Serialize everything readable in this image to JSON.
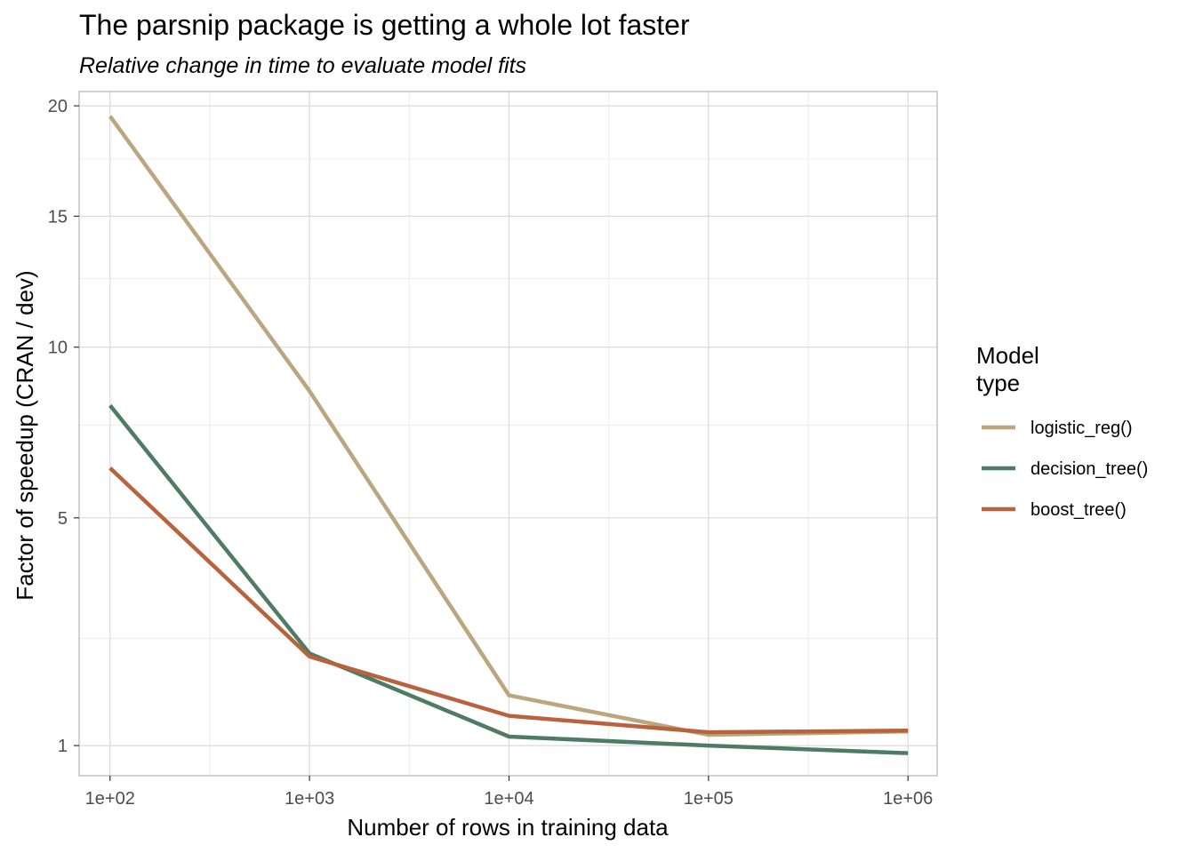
{
  "chart_data": {
    "type": "line",
    "title": "The parsnip package is getting a whole lot faster",
    "subtitle": "Relative change in time to evaluate model fits",
    "xlabel": "Number of rows in training data",
    "ylabel": "Factor of speedup (CRAN / dev)",
    "x_scale": "log10",
    "y_scale": "sqrt",
    "x": [
      100,
      1000,
      10000,
      100000,
      1000000
    ],
    "x_tick_values": [
      100,
      1000,
      10000,
      100000,
      1000000
    ],
    "x_tick_labels": [
      "1e+02",
      "1e+03",
      "1e+04",
      "1e+05",
      "1e+06"
    ],
    "y_tick_values": [
      1,
      5,
      10,
      15,
      20
    ],
    "y_tick_labels": [
      "1",
      "5",
      "10",
      "15",
      "20"
    ],
    "y_minor_values": [
      2.5,
      7.5,
      12.5,
      17.5
    ],
    "xlim": [
      70,
      1400000
    ],
    "ylim": [
      0.7,
      20.7
    ],
    "grid": true,
    "legend": {
      "title_lines": [
        "Model",
        "type"
      ],
      "placement": "right"
    },
    "series": [
      {
        "name": "logistic_reg()",
        "color": "#BCA67F",
        "values": [
          19.5,
          8.55,
          1.62,
          1.12,
          1.16
        ]
      },
      {
        "name": "decision_tree()",
        "color": "#4E7B63",
        "values": [
          8.1,
          2.25,
          1.1,
          1.0,
          0.92
        ]
      },
      {
        "name": "boost_tree()",
        "color": "#B8633D",
        "values": [
          6.28,
          2.2,
          1.35,
          1.15,
          1.17
        ]
      }
    ]
  }
}
